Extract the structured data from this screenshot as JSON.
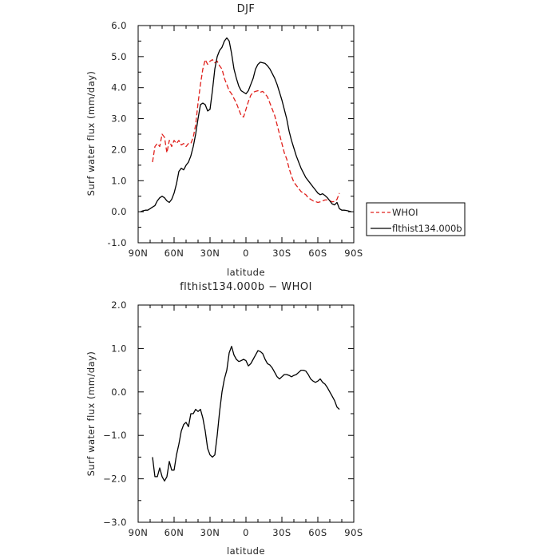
{
  "chart_data": [
    {
      "type": "line",
      "title": "DJF",
      "xlabel": "latitude",
      "ylabel": "Surf water flux (mm/day)",
      "xlim": [
        90,
        -90
      ],
      "ylim": [
        -1.0,
        6.0
      ],
      "xticks": [
        90,
        60,
        30,
        0,
        -30,
        -60,
        -90
      ],
      "xtick_labels": [
        "90N",
        "60N",
        "30N",
        "0",
        "30S",
        "60S",
        "90S"
      ],
      "yticks": [
        -1.0,
        0.0,
        1.0,
        2.0,
        3.0,
        4.0,
        5.0,
        6.0
      ],
      "ytick_labels": [
        "-1.0",
        "0.0",
        "1.0",
        "2.0",
        "3.0",
        "4.0",
        "5.0",
        "6.0"
      ],
      "legend_position": "outside-right",
      "series": [
        {
          "name": "WHOI",
          "color": "#e0201c",
          "dash": true,
          "x": [
            78,
            76,
            74,
            72,
            70,
            68,
            66,
            64,
            62,
            60,
            58,
            56,
            54,
            52,
            50,
            48,
            46,
            44,
            42,
            40,
            38,
            36,
            34,
            32,
            30,
            28,
            26,
            24,
            22,
            20,
            18,
            16,
            14,
            12,
            10,
            8,
            6,
            4,
            2,
            0,
            -2,
            -4,
            -6,
            -8,
            -10,
            -12,
            -14,
            -16,
            -18,
            -20,
            -22,
            -24,
            -26,
            -28,
            -30,
            -32,
            -34,
            -36,
            -38,
            -40,
            -42,
            -44,
            -46,
            -48,
            -50,
            -52,
            -54,
            -56,
            -58,
            -60,
            -62,
            -64,
            -66,
            -68,
            -70,
            -72,
            -74,
            -76,
            -78
          ],
          "y": [
            1.6,
            2.1,
            2.2,
            2.1,
            2.5,
            2.4,
            1.9,
            2.3,
            2.1,
            2.3,
            2.2,
            2.3,
            2.15,
            2.2,
            2.1,
            2.2,
            2.2,
            2.4,
            2.8,
            3.5,
            4.1,
            4.6,
            4.9,
            4.75,
            4.85,
            4.9,
            4.8,
            4.85,
            4.7,
            4.6,
            4.3,
            4.1,
            3.9,
            3.8,
            3.65,
            3.5,
            3.3,
            3.1,
            3.05,
            3.3,
            3.55,
            3.75,
            3.85,
            3.88,
            3.9,
            3.85,
            3.88,
            3.8,
            3.7,
            3.5,
            3.3,
            3.1,
            2.8,
            2.5,
            2.2,
            1.9,
            1.7,
            1.4,
            1.15,
            0.95,
            0.85,
            0.75,
            0.65,
            0.6,
            0.55,
            0.45,
            0.4,
            0.35,
            0.33,
            0.3,
            0.32,
            0.35,
            0.38,
            0.38,
            0.35,
            0.32,
            0.33,
            0.4,
            0.6
          ]
        },
        {
          "name": "flthist134.000b",
          "color": "#000000",
          "dash": false,
          "x": [
            88,
            86,
            84,
            82,
            80,
            78,
            76,
            74,
            72,
            70,
            68,
            66,
            64,
            62,
            60,
            58,
            56,
            54,
            52,
            50,
            48,
            46,
            44,
            42,
            40,
            38,
            36,
            34,
            32,
            30,
            28,
            26,
            24,
            22,
            20,
            18,
            16,
            14,
            12,
            10,
            8,
            6,
            4,
            2,
            0,
            -2,
            -4,
            -6,
            -8,
            -10,
            -12,
            -14,
            -16,
            -18,
            -20,
            -22,
            -24,
            -26,
            -28,
            -30,
            -32,
            -34,
            -36,
            -38,
            -40,
            -42,
            -44,
            -46,
            -48,
            -50,
            -52,
            -54,
            -56,
            -58,
            -60,
            -62,
            -64,
            -66,
            -68,
            -70,
            -72,
            -74,
            -76,
            -78,
            -80,
            -82,
            -84,
            -86,
            -88
          ],
          "y": [
            0.0,
            0.03,
            0.05,
            0.05,
            0.1,
            0.15,
            0.2,
            0.35,
            0.45,
            0.5,
            0.45,
            0.35,
            0.3,
            0.4,
            0.6,
            0.9,
            1.3,
            1.4,
            1.35,
            1.5,
            1.6,
            1.8,
            2.1,
            2.5,
            3.0,
            3.45,
            3.5,
            3.45,
            3.25,
            3.3,
            3.9,
            4.6,
            5.0,
            5.2,
            5.3,
            5.5,
            5.6,
            5.5,
            5.1,
            4.6,
            4.3,
            4.05,
            3.9,
            3.85,
            3.8,
            3.9,
            4.1,
            4.3,
            4.6,
            4.75,
            4.82,
            4.8,
            4.78,
            4.7,
            4.6,
            4.45,
            4.3,
            4.1,
            3.85,
            3.6,
            3.3,
            3.0,
            2.6,
            2.3,
            2.05,
            1.8,
            1.6,
            1.4,
            1.25,
            1.1,
            1.0,
            0.9,
            0.8,
            0.7,
            0.6,
            0.55,
            0.58,
            0.52,
            0.45,
            0.35,
            0.25,
            0.22,
            0.3,
            0.1,
            0.05,
            0.05,
            0.04,
            0.02,
            0.0
          ]
        }
      ]
    },
    {
      "type": "line",
      "title": "flthist134.000b − WHOI",
      "xlabel": "latitude",
      "ylabel": "Surf water flux (mm/day)",
      "xlim": [
        90,
        -90
      ],
      "ylim": [
        -3.0,
        2.0
      ],
      "xticks": [
        90,
        60,
        30,
        0,
        -30,
        -60,
        -90
      ],
      "xtick_labels": [
        "90N",
        "60N",
        "30N",
        "0",
        "30S",
        "60S",
        "90S"
      ],
      "yticks": [
        -3.0,
        -2.0,
        -1.0,
        0.0,
        1.0,
        2.0
      ],
      "ytick_labels": [
        "−3.0",
        "−2.0",
        "−1.0",
        "0.0",
        "1.0",
        "2.0"
      ],
      "series": [
        {
          "color": "#000000",
          "dash": false,
          "x": [
            78,
            76,
            74,
            72,
            70,
            68,
            66,
            64,
            62,
            60,
            58,
            56,
            54,
            52,
            50,
            48,
            46,
            44,
            42,
            40,
            38,
            36,
            34,
            32,
            30,
            28,
            26,
            24,
            22,
            20,
            18,
            16,
            14,
            12,
            10,
            8,
            6,
            4,
            2,
            0,
            -2,
            -4,
            -6,
            -8,
            -10,
            -12,
            -14,
            -16,
            -18,
            -20,
            -22,
            -24,
            -26,
            -28,
            -30,
            -32,
            -34,
            -36,
            -38,
            -40,
            -42,
            -44,
            -46,
            -48,
            -50,
            -52,
            -54,
            -56,
            -58,
            -60,
            -62,
            -64,
            -66,
            -68,
            -70,
            -72,
            -74,
            -76,
            -78
          ],
          "y": [
            -1.5,
            -1.95,
            -1.95,
            -1.75,
            -1.95,
            -2.05,
            -1.95,
            -1.6,
            -1.8,
            -1.8,
            -1.45,
            -1.2,
            -0.9,
            -0.75,
            -0.7,
            -0.8,
            -0.5,
            -0.5,
            -0.4,
            -0.45,
            -0.4,
            -0.6,
            -0.9,
            -1.3,
            -1.45,
            -1.5,
            -1.45,
            -1.0,
            -0.45,
            0.0,
            0.3,
            0.5,
            0.9,
            1.05,
            0.85,
            0.75,
            0.7,
            0.72,
            0.75,
            0.72,
            0.6,
            0.65,
            0.75,
            0.85,
            0.95,
            0.93,
            0.88,
            0.75,
            0.65,
            0.62,
            0.55,
            0.45,
            0.35,
            0.3,
            0.35,
            0.4,
            0.4,
            0.38,
            0.35,
            0.38,
            0.4,
            0.45,
            0.5,
            0.5,
            0.48,
            0.4,
            0.3,
            0.25,
            0.22,
            0.25,
            0.3,
            0.22,
            0.18,
            0.1,
            0.0,
            -0.1,
            -0.2,
            -0.35,
            -0.4
          ]
        }
      ]
    }
  ]
}
